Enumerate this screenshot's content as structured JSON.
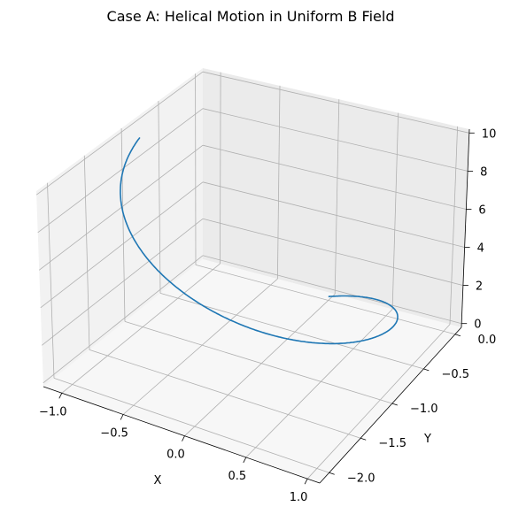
{
  "chart_data": {
    "type": "line",
    "projection": "3d",
    "title": "Case A: Helical Motion in Uniform B Field",
    "xlabel": "X",
    "ylabel": "Y",
    "zlabel": "",
    "xlim": [
      -1.15,
      1.1
    ],
    "ylim": [
      -2.15,
      0.1
    ],
    "zlim": [
      -0.2,
      10.2
    ],
    "xticks": [
      -1.0,
      -0.5,
      0.0,
      0.5,
      1.0
    ],
    "xtick_labels": [
      "−1.0",
      "−0.5",
      "0.0",
      "0.5",
      "1.0"
    ],
    "yticks": [
      -2.0,
      -1.5,
      -1.0,
      -0.5,
      0.0
    ],
    "ytick_labels": [
      "−2.0",
      "−1.5",
      "−1.0",
      "−0.5",
      "0.0"
    ],
    "zticks": [
      0,
      2,
      4,
      6,
      8,
      10
    ],
    "ztick_labels": [
      "0",
      "2",
      "4",
      "6",
      "8",
      "10"
    ],
    "grid": true,
    "series": [
      {
        "color": "#1f77b4",
        "parametric": {
          "x": "sin(t)",
          "y": "cos(t) - 1",
          "z": "t / (1.5 * pi) * 10",
          "t_range": [
            0,
            4.712
          ]
        }
      }
    ]
  }
}
